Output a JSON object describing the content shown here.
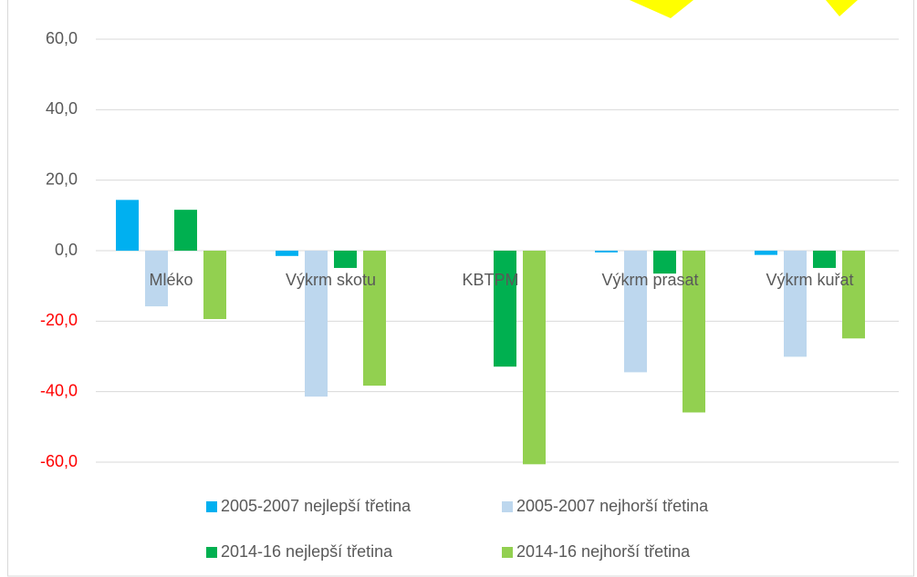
{
  "chart_data": {
    "type": "bar",
    "categories": [
      "Mléko",
      "Výkrm skotu",
      "KBTPM",
      "Výkrm prasat",
      "Výkrm kuřat"
    ],
    "series": [
      {
        "name": "2005-2007 nejlepší třetina",
        "color": "#00b0f0",
        "values": [
          14.4,
          -1.5,
          null,
          -0.5,
          -1.2
        ]
      },
      {
        "name": "2005-2007 nejhorší třetina",
        "color": "#bdd7ee",
        "values": [
          -15.8,
          -41.4,
          null,
          -34.5,
          -30.1
        ]
      },
      {
        "name": "2014-16 nejlepší třetina",
        "color": "#00b050",
        "values": [
          11.6,
          -4.9,
          -32.9,
          -6.5,
          -4.9
        ]
      },
      {
        "name": "2014-16 nejhorší třetina",
        "color": "#92d050",
        "values": [
          -19.4,
          -38.3,
          -60.6,
          -45.9,
          -24.9
        ]
      }
    ],
    "ylim": [
      -60,
      60
    ],
    "yticks": [
      {
        "value": 60,
        "label": "60,0"
      },
      {
        "value": 40,
        "label": "40,0"
      },
      {
        "value": 20,
        "label": "20,0"
      },
      {
        "value": 0,
        "label": "0,0"
      },
      {
        "value": -20,
        "label": "-20,0"
      },
      {
        "value": -40,
        "label": "-40,0"
      },
      {
        "value": -60,
        "label": "-60,0"
      }
    ],
    "negative_tick_color": "#ff0000",
    "grid": true,
    "legend": "bottom"
  }
}
